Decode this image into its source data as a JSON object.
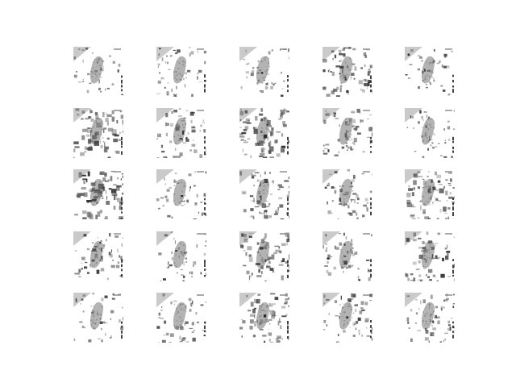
{
  "figure": {
    "rows": 5,
    "columns": 5,
    "colormap": "grayscale",
    "background_color": "#ffffff",
    "tiles": [
      {
        "row": 1,
        "col": 1,
        "texture_density": 0.2
      },
      {
        "row": 1,
        "col": 2,
        "texture_density": 0.35
      },
      {
        "row": 1,
        "col": 3,
        "texture_density": 0.28
      },
      {
        "row": 1,
        "col": 4,
        "texture_density": 0.55
      },
      {
        "row": 1,
        "col": 5,
        "texture_density": 0.22
      },
      {
        "row": 2,
        "col": 1,
        "texture_density": 0.7
      },
      {
        "row": 2,
        "col": 2,
        "texture_density": 0.45
      },
      {
        "row": 2,
        "col": 3,
        "texture_density": 0.75
      },
      {
        "row": 2,
        "col": 4,
        "texture_density": 0.5
      },
      {
        "row": 2,
        "col": 5,
        "texture_density": 0.25
      },
      {
        "row": 3,
        "col": 1,
        "texture_density": 0.8
      },
      {
        "row": 3,
        "col": 2,
        "texture_density": 0.3
      },
      {
        "row": 3,
        "col": 3,
        "texture_density": 0.6
      },
      {
        "row": 3,
        "col": 4,
        "texture_density": 0.4
      },
      {
        "row": 3,
        "col": 5,
        "texture_density": 0.65
      },
      {
        "row": 4,
        "col": 1,
        "texture_density": 0.45
      },
      {
        "row": 4,
        "col": 2,
        "texture_density": 0.3
      },
      {
        "row": 4,
        "col": 3,
        "texture_density": 0.7
      },
      {
        "row": 4,
        "col": 4,
        "texture_density": 0.35
      },
      {
        "row": 4,
        "col": 5,
        "texture_density": 0.5
      },
      {
        "row": 5,
        "col": 1,
        "texture_density": 0.25
      },
      {
        "row": 5,
        "col": 2,
        "texture_density": 0.4
      },
      {
        "row": 5,
        "col": 3,
        "texture_density": 0.65
      },
      {
        "row": 5,
        "col": 4,
        "texture_density": 0.4
      },
      {
        "row": 5,
        "col": 5,
        "texture_density": 0.45
      }
    ]
  }
}
